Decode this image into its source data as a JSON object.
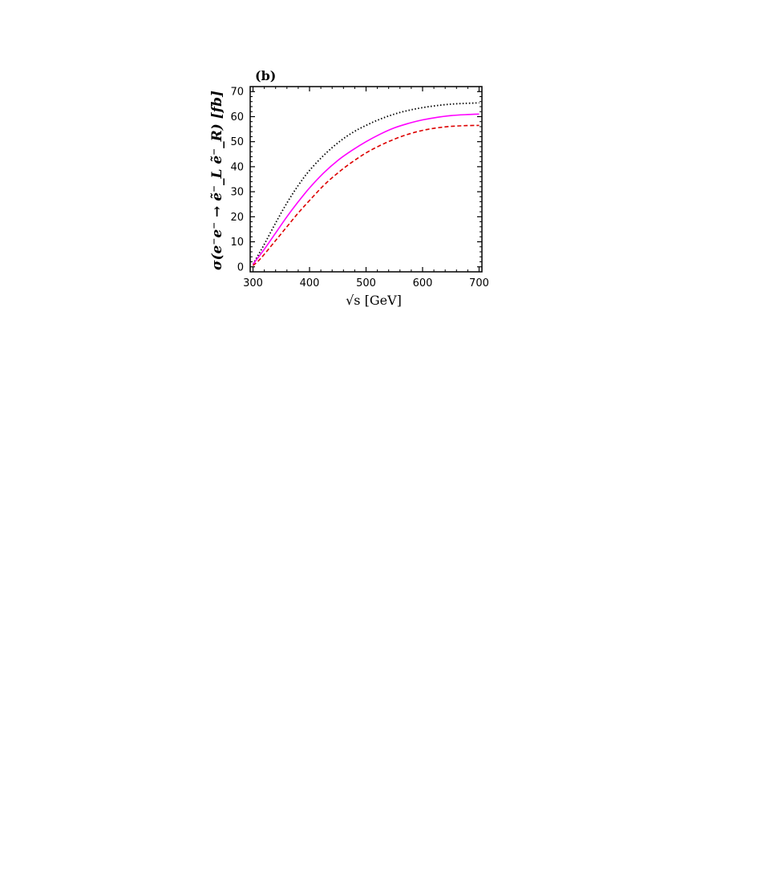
{
  "chart_data": {
    "type": "line",
    "panel_label": "(b)",
    "xlabel": "√s [GeV]",
    "ylabel": "σ(e⁻e⁻ → ẽ⁻_L ẽ⁻_R) [fb]",
    "xlim": [
      295,
      705
    ],
    "ylim": [
      -2,
      72
    ],
    "xticks": [
      300,
      400,
      500,
      600,
      700
    ],
    "yticks": [
      0,
      10,
      20,
      30,
      40,
      50,
      60,
      70
    ],
    "grid": false,
    "x": [
      300,
      310,
      320,
      340,
      360,
      380,
      400,
      425,
      450,
      475,
      500,
      525,
      550,
      575,
      600,
      625,
      650,
      675,
      700
    ],
    "series": [
      {
        "color": "#000000",
        "style": "dotted",
        "values": [
          1,
          5,
          9,
          17.5,
          25.5,
          32.5,
          38.5,
          44.5,
          49.5,
          53.5,
          56.5,
          59,
          61,
          62.5,
          63.6,
          64.4,
          65,
          65.3,
          65.5
        ]
      },
      {
        "color": "#ff00ff",
        "style": "solid",
        "values": [
          1,
          4,
          7,
          13.5,
          20,
          26,
          31.5,
          37.5,
          42.5,
          46.5,
          50,
          53,
          55.5,
          57.3,
          58.7,
          59.7,
          60.4,
          60.8,
          61
        ]
      },
      {
        "color": "#dd0000",
        "style": "dashed",
        "values": [
          0.5,
          2.5,
          5,
          10.5,
          16,
          21.5,
          26.5,
          32.5,
          37.5,
          41.8,
          45.5,
          48.5,
          51,
          53,
          54.5,
          55.5,
          56.1,
          56.4,
          56.5
        ]
      }
    ]
  }
}
